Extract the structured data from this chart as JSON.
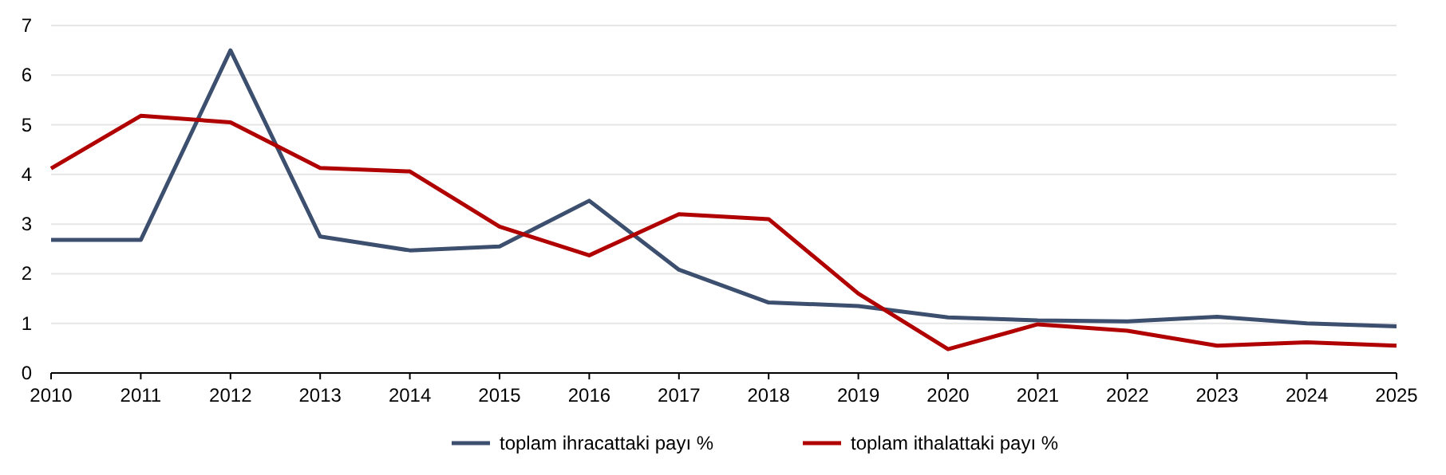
{
  "chart_data": {
    "type": "line",
    "x": [
      2010,
      2011,
      2012,
      2013,
      2014,
      2015,
      2016,
      2017,
      2018,
      2019,
      2020,
      2021,
      2022,
      2023,
      2024,
      2025
    ],
    "series": [
      {
        "name": "toplam ihracattaki payı %",
        "color": "#3d4f6e",
        "values": [
          2.68,
          2.68,
          6.5,
          2.75,
          2.47,
          2.55,
          3.47,
          2.08,
          1.42,
          1.35,
          1.12,
          1.06,
          1.04,
          1.13,
          1.0,
          0.94
        ]
      },
      {
        "name": "toplam ithalattaki payı %",
        "color": "#b00000",
        "values": [
          4.12,
          5.18,
          5.05,
          4.13,
          4.06,
          2.95,
          2.37,
          3.2,
          3.1,
          1.6,
          0.48,
          0.98,
          0.85,
          0.55,
          0.62,
          0.55
        ]
      }
    ],
    "xlim": [
      2010,
      2025
    ],
    "xticks": [
      2010,
      2011,
      2012,
      2013,
      2014,
      2015,
      2016,
      2017,
      2018,
      2019,
      2020,
      2021,
      2022,
      2023,
      2024,
      2025
    ],
    "ylim": [
      0,
      7
    ],
    "yticks": [
      0,
      1,
      2,
      3,
      4,
      5,
      6,
      7
    ],
    "grid": "y",
    "legend": "bottom",
    "marker": "none",
    "line_style": "solid"
  }
}
